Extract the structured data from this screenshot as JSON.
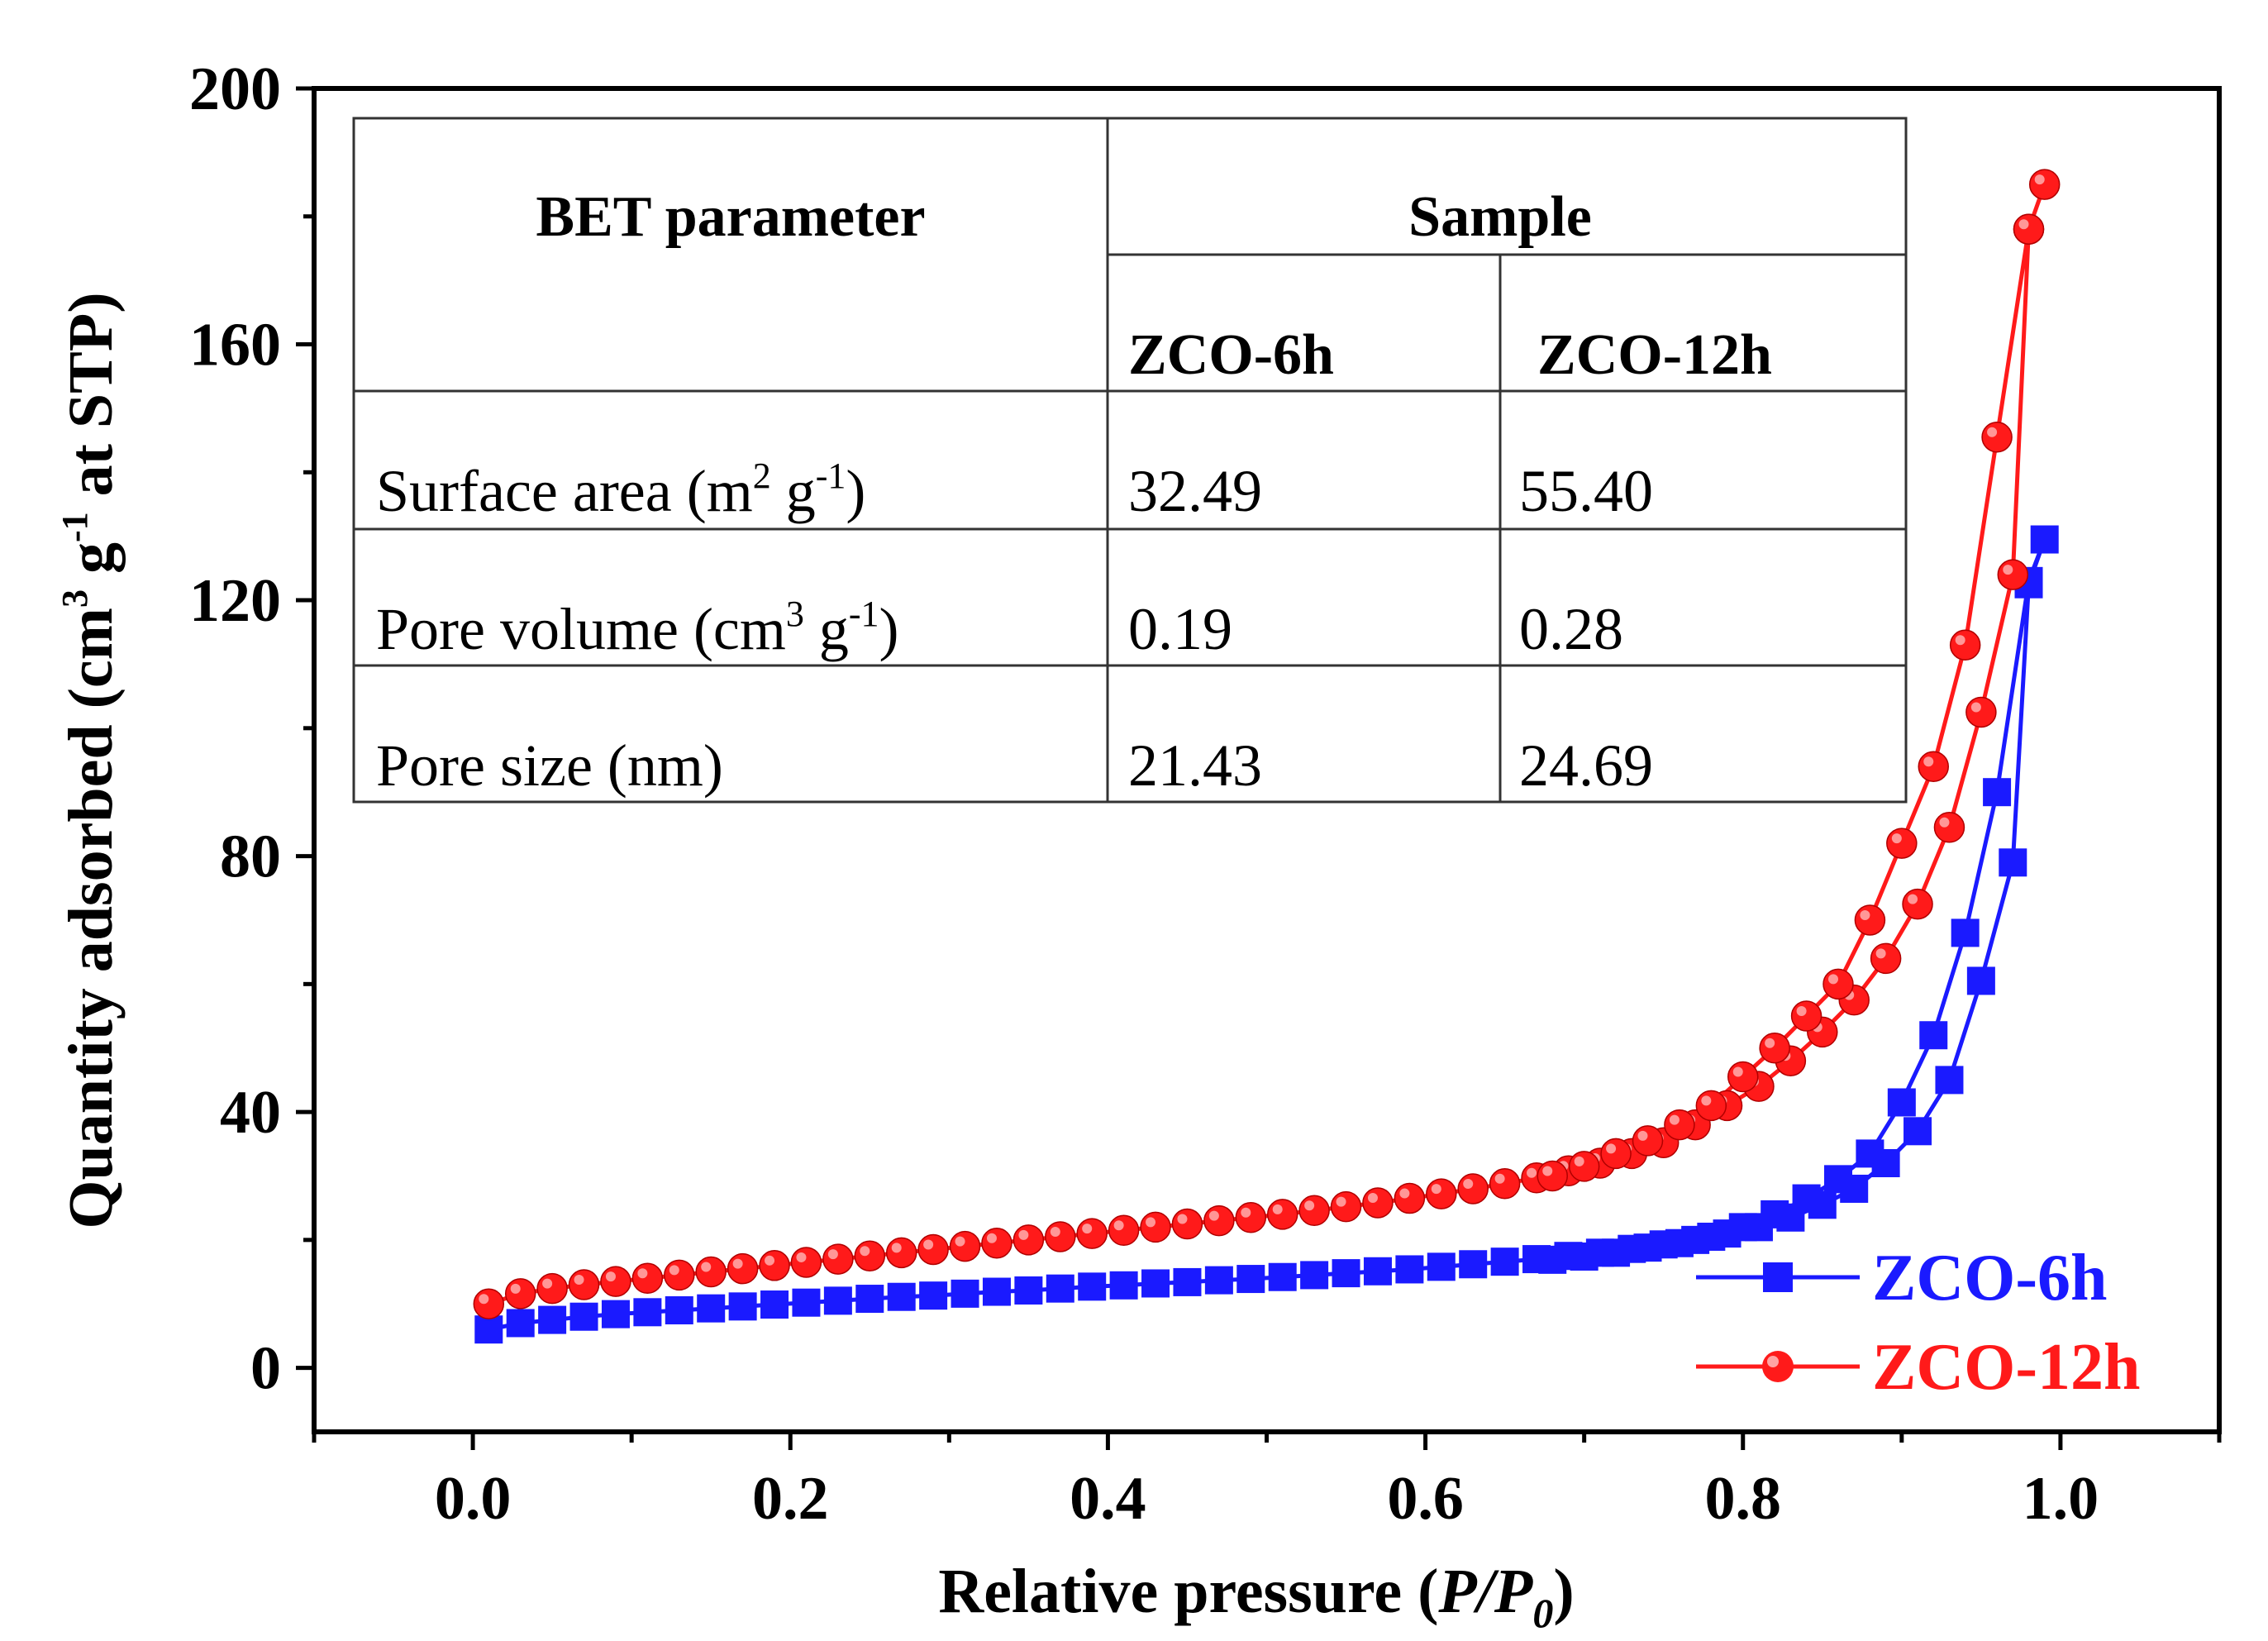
{
  "chart_data": {
    "type": "line",
    "xlabel": "Relative pressure (P/P0)",
    "xlabel_parts": {
      "main": "Relative pressure (",
      "italic": "P/P",
      "sub": "0",
      "close": ")"
    },
    "ylabel": "Quantity adsorbed (cm3 g-1 at STP)",
    "ylabel_parts": {
      "a": "Quantity adsorbed (cm",
      "sup1": "3",
      "b": " g",
      "sup2": "-1",
      "c": " at STP)"
    },
    "xlim": [
      -0.1,
      1.1
    ],
    "ylim": [
      -10,
      200
    ],
    "xticks": [
      0.0,
      0.2,
      0.4,
      0.6,
      0.8,
      1.0
    ],
    "xtick_labels": [
      "0.0",
      "0.2",
      "0.4",
      "0.6",
      "0.8",
      "1.0"
    ],
    "yticks": [
      0,
      40,
      80,
      120,
      160,
      200
    ],
    "ytick_labels": [
      "0",
      "40",
      "80",
      "120",
      "160",
      "200"
    ],
    "legend_position": "bottom-right",
    "series": [
      {
        "name": "ZCO-6h",
        "color": "#1a1aff",
        "marker": "square",
        "x": [
          0.01,
          0.03,
          0.05,
          0.07,
          0.09,
          0.11,
          0.13,
          0.15,
          0.17,
          0.19,
          0.21,
          0.23,
          0.25,
          0.27,
          0.29,
          0.31,
          0.33,
          0.35,
          0.37,
          0.39,
          0.41,
          0.43,
          0.45,
          0.47,
          0.49,
          0.51,
          0.53,
          0.55,
          0.57,
          0.59,
          0.61,
          0.63,
          0.65,
          0.67,
          0.69,
          0.71,
          0.73,
          0.75,
          0.77,
          0.79,
          0.81,
          0.83,
          0.85,
          0.87,
          0.89,
          0.91,
          0.93,
          0.95,
          0.97,
          0.98,
          0.99,
          0.98,
          0.96,
          0.94,
          0.92,
          0.9,
          0.88,
          0.86,
          0.84,
          0.82,
          0.8,
          0.78,
          0.76,
          0.74,
          0.72,
          0.7,
          0.68
        ],
        "y": [
          6.0,
          7.0,
          7.5,
          8.0,
          8.4,
          8.7,
          9.0,
          9.3,
          9.6,
          9.9,
          10.2,
          10.5,
          10.8,
          11.1,
          11.3,
          11.6,
          11.9,
          12.1,
          12.4,
          12.7,
          12.9,
          13.2,
          13.4,
          13.7,
          13.9,
          14.2,
          14.5,
          14.8,
          15.1,
          15.4,
          15.8,
          16.2,
          16.6,
          17.0,
          17.5,
          18.0,
          18.6,
          19.3,
          20.0,
          21.0,
          22.0,
          23.5,
          25.5,
          28.0,
          32.0,
          37.0,
          45.0,
          60.5,
          79.0,
          122.5,
          129.5,
          123.0,
          90.0,
          68.0,
          52.0,
          41.5,
          33.5,
          29.5,
          26.5,
          24.0,
          22.0,
          20.5,
          19.5,
          18.8,
          18.0,
          17.4,
          16.9
        ]
      },
      {
        "name": "ZCO-12h",
        "color": "#ff1a1a",
        "marker": "circle",
        "x": [
          0.01,
          0.03,
          0.05,
          0.07,
          0.09,
          0.11,
          0.13,
          0.15,
          0.17,
          0.19,
          0.21,
          0.23,
          0.25,
          0.27,
          0.29,
          0.31,
          0.33,
          0.35,
          0.37,
          0.39,
          0.41,
          0.43,
          0.45,
          0.47,
          0.49,
          0.51,
          0.53,
          0.55,
          0.57,
          0.59,
          0.61,
          0.63,
          0.65,
          0.67,
          0.69,
          0.71,
          0.73,
          0.75,
          0.77,
          0.79,
          0.81,
          0.83,
          0.85,
          0.87,
          0.89,
          0.91,
          0.93,
          0.95,
          0.97,
          0.98,
          0.99,
          0.98,
          0.96,
          0.94,
          0.92,
          0.9,
          0.88,
          0.86,
          0.84,
          0.82,
          0.8,
          0.78,
          0.76,
          0.74,
          0.72,
          0.7,
          0.68
        ],
        "y": [
          10.0,
          11.6,
          12.4,
          13.0,
          13.5,
          14.0,
          14.5,
          15.0,
          15.5,
          16.0,
          16.5,
          17.0,
          17.5,
          18.0,
          18.5,
          19.0,
          19.5,
          20.0,
          20.5,
          21.0,
          21.5,
          22.0,
          22.5,
          23.0,
          23.5,
          24.0,
          24.6,
          25.2,
          25.8,
          26.5,
          27.2,
          28.0,
          28.8,
          29.7,
          30.8,
          32.0,
          33.5,
          35.2,
          38.0,
          41.0,
          44.0,
          48.0,
          52.5,
          57.5,
          64.0,
          72.5,
          84.5,
          102.5,
          124.0,
          178.0,
          185.0,
          178.0,
          145.5,
          113.0,
          94.0,
          82.0,
          70.0,
          60.0,
          55.0,
          50.0,
          45.5,
          41.0,
          38.0,
          35.5,
          33.5,
          31.5,
          30.0
        ]
      }
    ],
    "inset_table": {
      "header_param": "BET parameter",
      "header_sample": "Sample",
      "col1": "ZCO-6h",
      "col2": "ZCO-12h",
      "rows": [
        {
          "label": "Surface area (m",
          "sup": "2",
          "label_mid": " g",
          "sup2": "-1",
          "label_end": ")",
          "v1": "32.49",
          "v2": "55.40"
        },
        {
          "label": "Pore volume  (cm",
          "sup": "3",
          "label_mid": " g",
          "sup2": "-1",
          "label_end": ")",
          "v1": "0.19",
          "v2": "0.28"
        },
        {
          "label": "Pore size (nm)",
          "sup": "",
          "label_mid": "",
          "sup2": "",
          "label_end": "",
          "v1": "21.43",
          "v2": "24.69"
        }
      ]
    }
  }
}
